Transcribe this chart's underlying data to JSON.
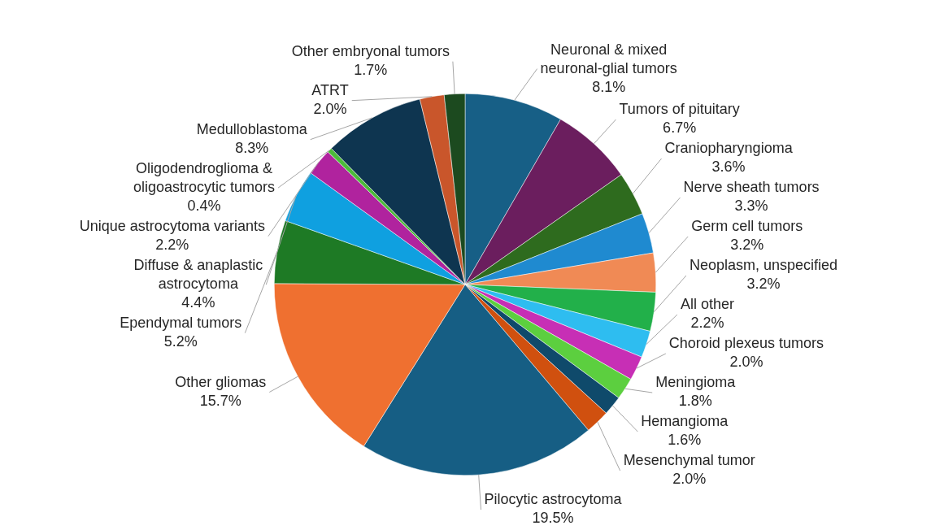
{
  "chart_data": {
    "type": "pie",
    "categories": [
      "Neuronal & mixed neuronal-glial tumors",
      "Tumors of pituitary",
      "Craniopharyngioma",
      "Nerve sheath tumors",
      "Germ cell tumors",
      "Neoplasm, unspecified",
      "All other",
      "Choroid plexeus tumors",
      "Meningioma",
      "Hemangioma",
      "Mesenchymal tumor",
      "Pilocytic astrocytoma",
      "Other gliomas",
      "Ependymal tumors",
      "Diffuse & anaplastic astrocytoma",
      "Unique astrocytoma variants",
      "Oligodendroglioma & oligoastrocytic tumors",
      "Medulloblastoma",
      "ATRT",
      "Other embryonal tumors"
    ],
    "values": [
      8.1,
      6.7,
      3.6,
      3.3,
      3.2,
      3.2,
      2.2,
      2.0,
      1.8,
      1.6,
      2.0,
      19.5,
      15.7,
      5.2,
      4.4,
      2.2,
      0.4,
      8.3,
      2.0,
      1.7
    ],
    "value_labels": [
      "8.1%",
      "6.7%",
      "3.6%",
      "3.3%",
      "3.2%",
      "3.2%",
      "2.2%",
      "2.0%",
      "1.8%",
      "1.6%",
      "2.0%",
      "19.5%",
      "15.7%",
      "5.2%",
      "4.4%",
      "2.2%",
      "0.4%",
      "8.3%",
      "2.0%",
      "1.7%"
    ],
    "colors": [
      "#175f86",
      "#6b1e5e",
      "#2e6b1e",
      "#1f8ad0",
      "#f08a55",
      "#22b04a",
      "#2ebdf0",
      "#c72fb5",
      "#5ccf3f",
      "#0f4a6b",
      "#d0500f",
      "#165e84",
      "#ef7030",
      "#1e7a25",
      "#0fa0e0",
      "#b0239e",
      "#4cbb3a",
      "#0e3550",
      "#c9562b",
      "#1c4a1f"
    ],
    "legend": false
  }
}
